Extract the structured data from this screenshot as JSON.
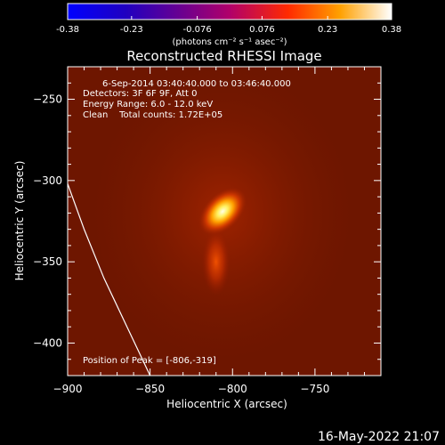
{
  "chart_data": {
    "type": "heatmap",
    "title": "Reconstructed RHESSI Image",
    "xlabel": "Heliocentric X (arcsec)",
    "ylabel": "Heliocentric Y (arcsec)",
    "xlim": [
      -900,
      -710
    ],
    "ylim": [
      -420,
      -230
    ],
    "x_ticks": [
      -900,
      -850,
      -800,
      -750
    ],
    "y_ticks": [
      -250,
      -300,
      -350,
      -400
    ],
    "colorbar": {
      "range": [
        -0.38,
        0.38
      ],
      "ticks": [
        "-0.38",
        "-0.23",
        "-0.076",
        "0.076",
        "0.23",
        "0.38"
      ],
      "tick_values": [
        -0.38,
        -0.23,
        -0.076,
        0.076,
        0.23,
        0.38
      ],
      "units_label": "(photons cm⁻² s⁻¹ asec⁻²)"
    },
    "annotations": [
      "6-Sep-2014 03:40:40.000 to 03:46:40.000",
      "Detectors: 3F 6F 9F, Att 0",
      "Energy Range: 6.0 - 12.0 keV",
      "Clean    Total counts: 1.72E+05"
    ],
    "peak_label": "Position of Peak = [-806,-319]",
    "peak": [
      -806,
      -319
    ],
    "sources": [
      {
        "x": -806,
        "y": -319,
        "intensity": 1.0
      },
      {
        "x": -810,
        "y": -350,
        "intensity": 0.45
      }
    ],
    "limb_curve": [
      [
        -900,
        -302
      ],
      [
        -890,
        -330
      ],
      [
        -878,
        -360
      ],
      [
        -864,
        -390
      ],
      [
        -850,
        -420
      ]
    ]
  },
  "timestamp": "16-May-2022 21:07",
  "colors": {
    "background": "#000000",
    "image_base": "#7a1a00",
    "limb": "#ffffff"
  }
}
